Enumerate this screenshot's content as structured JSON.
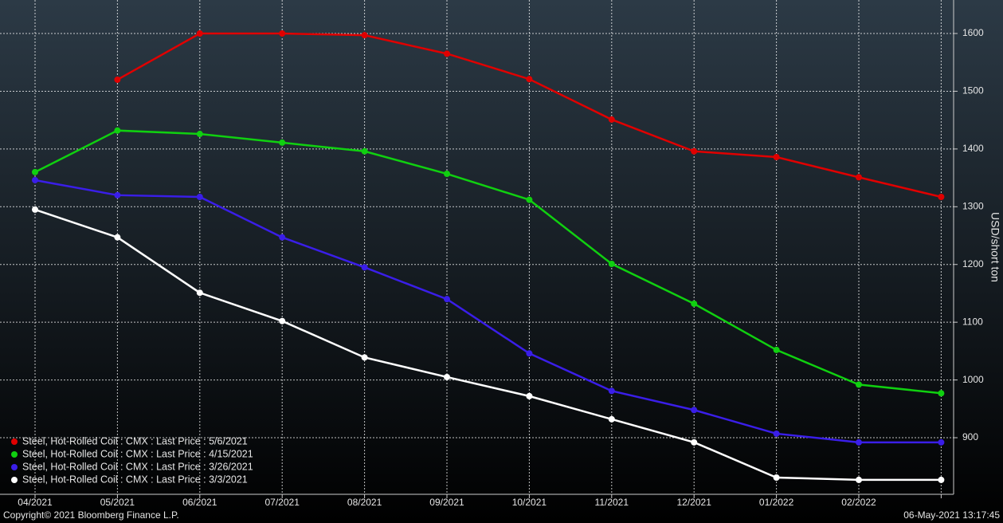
{
  "chart_data": {
    "type": "line",
    "y_label": "USD/short ton",
    "categories": [
      "04/2021",
      "05/2021",
      "06/2021",
      "07/2021",
      "08/2021",
      "09/2021",
      "10/2021",
      "11/2021",
      "12/2021",
      "01/2022",
      "02/2022",
      null
    ],
    "series": [
      {
        "name": "Steel, Hot-Rolled Coil : CMX : Last Price : 5/6/2021",
        "color": "#e00000",
        "values": [
          null,
          1520,
          1600,
          1600,
          1597,
          1565,
          1521,
          1451,
          1396,
          1386,
          1351,
          1317
        ]
      },
      {
        "name": "Steel, Hot-Rolled Coil : CMX : Last Price : 4/15/2021",
        "color": "#10d010",
        "values": [
          1360,
          1432,
          1426,
          1411,
          1396,
          1357,
          1312,
          1201,
          1132,
          1052,
          992,
          977
        ]
      },
      {
        "name": "Steel, Hot-Rolled Coil : CMX : Last Price : 3/26/2021",
        "color": "#3a1ee8",
        "values": [
          1346,
          1320,
          1317,
          1247,
          1195,
          1140,
          1046,
          981,
          948,
          907,
          892,
          892
        ]
      },
      {
        "name": "Steel, Hot-Rolled Coil : CMX : Last Price : 3/3/2021",
        "color": "#ffffff",
        "values": [
          1295,
          1247,
          1151,
          1102,
          1039,
          1005,
          972,
          932,
          892,
          831,
          827,
          827
        ]
      }
    ],
    "ylim": [
      802,
      1658
    ],
    "yticks": [
      900,
      1000,
      1100,
      1200,
      1300,
      1400,
      1500,
      1600
    ],
    "grid": true,
    "legend": "bottom-left",
    "copyright": "Copyright© 2021 Bloomberg Finance L.P.",
    "timestamp": "06-May-2021 13:17:45"
  }
}
